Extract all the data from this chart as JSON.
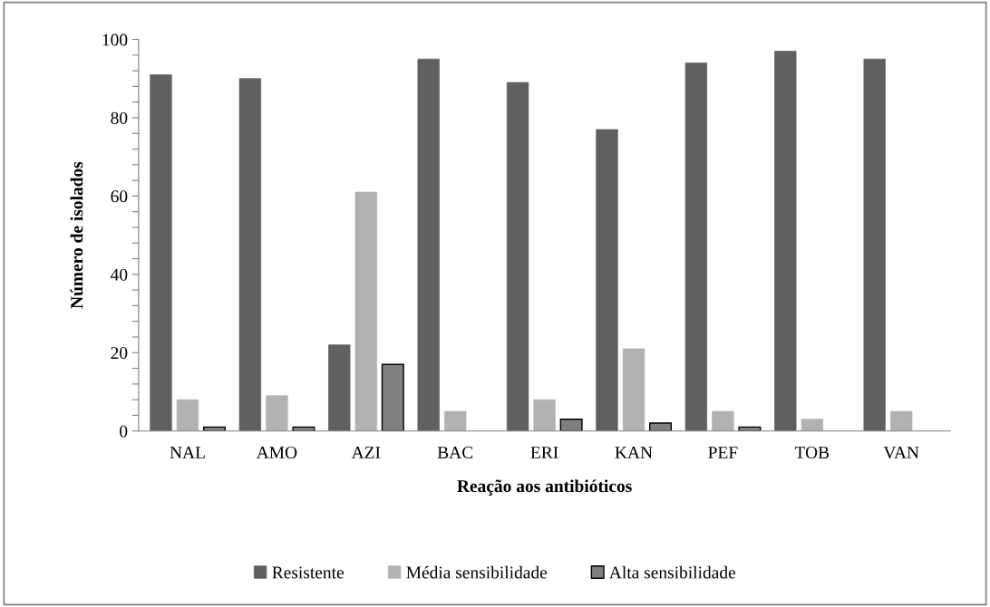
{
  "chart_data": {
    "type": "bar",
    "xlabel": "Reação aos antibióticos",
    "ylabel": "Número de isolados",
    "categories": [
      "NAL",
      "AMO",
      "AZI",
      "BAC",
      "ERI",
      "KAN",
      "PEF",
      "TOB",
      "VAN"
    ],
    "series": [
      {
        "name": "Resistente",
        "color": "#606060",
        "values": [
          91,
          90,
          22,
          95,
          89,
          77,
          94,
          97,
          95
        ]
      },
      {
        "name": "Média sensibilidade",
        "color": "#b2b2b2",
        "values": [
          8,
          9,
          61,
          5,
          8,
          21,
          5,
          3,
          5
        ]
      },
      {
        "name": "Alta sensibilidade",
        "color": "#808080",
        "values": [
          1,
          1,
          17,
          null,
          3,
          2,
          1,
          null,
          null
        ]
      }
    ],
    "ylim": [
      0,
      100
    ],
    "yticks": [
      0,
      {
        "value": 4,
        "label": null
      },
      {
        "value": 8,
        "label": null
      },
      {
        "value": 12,
        "label": null
      },
      {
        "value": 16,
        "label": null
      },
      20,
      {
        "value": 24,
        "label": null
      },
      {
        "value": 28,
        "label": null
      },
      {
        "value": 32,
        "label": null
      },
      {
        "value": 36,
        "label": null
      },
      40,
      {
        "value": 44,
        "label": null
      },
      {
        "value": 48,
        "label": null
      },
      {
        "value": 52,
        "label": null
      },
      {
        "value": 56,
        "label": null
      },
      60,
      {
        "value": 64,
        "label": null
      },
      {
        "value": 68,
        "label": null
      },
      {
        "value": 72,
        "label": null
      },
      {
        "value": 76,
        "label": null
      },
      80,
      {
        "value": 84,
        "label": null
      },
      {
        "value": 88,
        "label": null
      },
      {
        "value": 92,
        "label": null
      },
      {
        "value": 96,
        "label": null
      },
      100
    ],
    "grid": false,
    "legend": "bottom"
  }
}
